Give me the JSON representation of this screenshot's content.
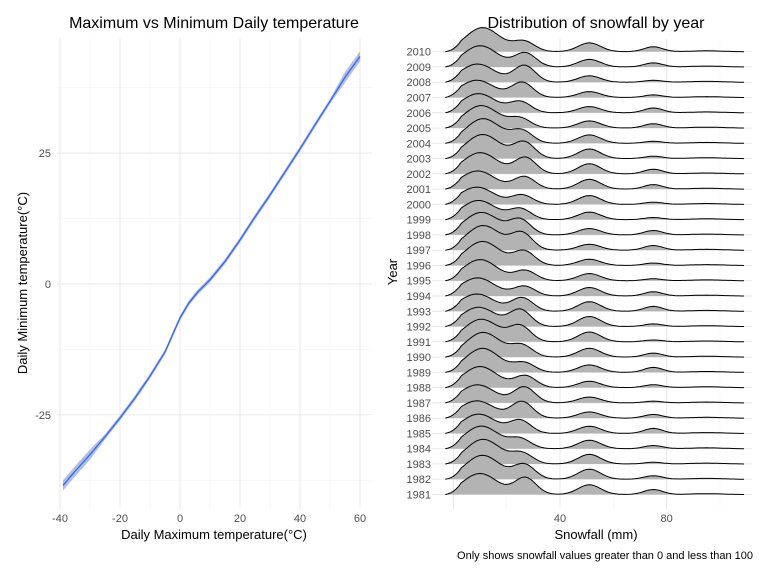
{
  "chart_data": [
    {
      "type": "line",
      "title": "Maximum vs Minimum Daily temperature",
      "xlabel": "Daily Maximum temperature(°C)",
      "ylabel": "Daily Minimum temperature(°C)",
      "xlim": [
        -41,
        64
      ],
      "ylim": [
        -43,
        47
      ],
      "xticks": [
        -40,
        -20,
        0,
        20,
        40,
        60
      ],
      "yticks": [
        -25,
        0,
        25
      ],
      "grid": true,
      "line_color": "#3366ff",
      "band_color": "#9aa9d6",
      "series": [
        {
          "x": [
            -39,
            -35,
            -30,
            -25,
            -20,
            -15,
            -10,
            -5,
            -3,
            0,
            3,
            6,
            10,
            15,
            20,
            25,
            30,
            35,
            40,
            45,
            50,
            55,
            60
          ],
          "y": [
            -38.5,
            -35.8,
            -32.6,
            -29.2,
            -25.6,
            -21.8,
            -17.6,
            -13.0,
            -10.4,
            -6.5,
            -3.6,
            -1.5,
            0.8,
            4.3,
            8.4,
            12.8,
            17.0,
            21.4,
            25.8,
            30.4,
            34.9,
            39.5,
            43.5
          ]
        }
      ]
    },
    {
      "type": "ridgeline",
      "title": "Distribution of snowfall by year",
      "xlabel": "Snowfall (mm)",
      "ylabel": "Year",
      "xlim": [
        -8,
        112
      ],
      "xticks": [
        40,
        80
      ],
      "caption": "Only shows snowfall values greater than 0 and less than 100",
      "fill_color": "#b3b3b3",
      "categories": [
        "1981",
        "1982",
        "1983",
        "1984",
        "1985",
        "1986",
        "1987",
        "1988",
        "1989",
        "1990",
        "1991",
        "1992",
        "1993",
        "1994",
        "1995",
        "1996",
        "1997",
        "1998",
        "1999",
        "2000",
        "2001",
        "2002",
        "2003",
        "2004",
        "2005",
        "2006",
        "2007",
        "2008",
        "2009",
        "2010"
      ]
    }
  ]
}
